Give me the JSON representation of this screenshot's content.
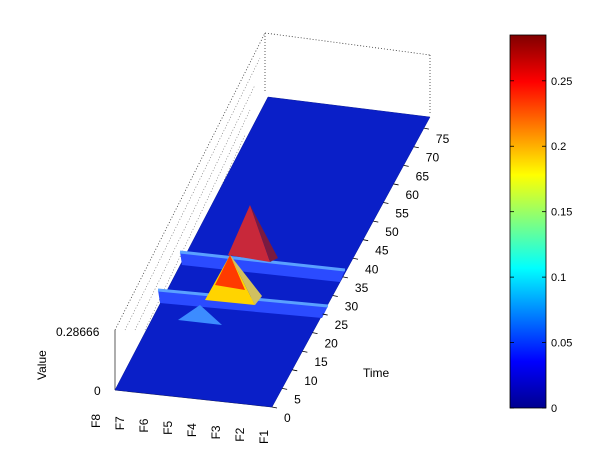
{
  "chart_data": {
    "type": "surface",
    "xlabel": "",
    "ylabel": "Time",
    "zlabel": "Value",
    "x_categories": [
      "F1",
      "F2",
      "F3",
      "F4",
      "F5",
      "F6",
      "F7",
      "F8"
    ],
    "y_ticks": [
      "0",
      "5",
      "10",
      "15",
      "20",
      "25",
      "30",
      "35",
      "40",
      "45",
      "50",
      "55",
      "60",
      "65",
      "70",
      "75"
    ],
    "z_ticks": [
      "0",
      "0.28666"
    ],
    "zlim": [
      0,
      0.28666
    ],
    "ylim": [
      0,
      78
    ],
    "colormap": "jet",
    "colorbar": {
      "ticks": [
        "0",
        "0.05",
        "0.1",
        "0.15",
        "0.2",
        "0.25"
      ],
      "range": [
        0,
        0.285
      ]
    },
    "grid": "dotted box",
    "features": [
      {
        "type": "ridge",
        "time": 28,
        "peak": 0.02
      },
      {
        "type": "ridge",
        "time": 37,
        "peak": 0.02
      },
      {
        "type": "peak",
        "feature": "F4",
        "time": 28,
        "value": 0.2
      },
      {
        "type": "peak",
        "feature": "F4",
        "time": 38,
        "value": 0.285
      },
      {
        "type": "peak",
        "feature": "F6",
        "time": 22,
        "value": 0.05
      }
    ]
  }
}
